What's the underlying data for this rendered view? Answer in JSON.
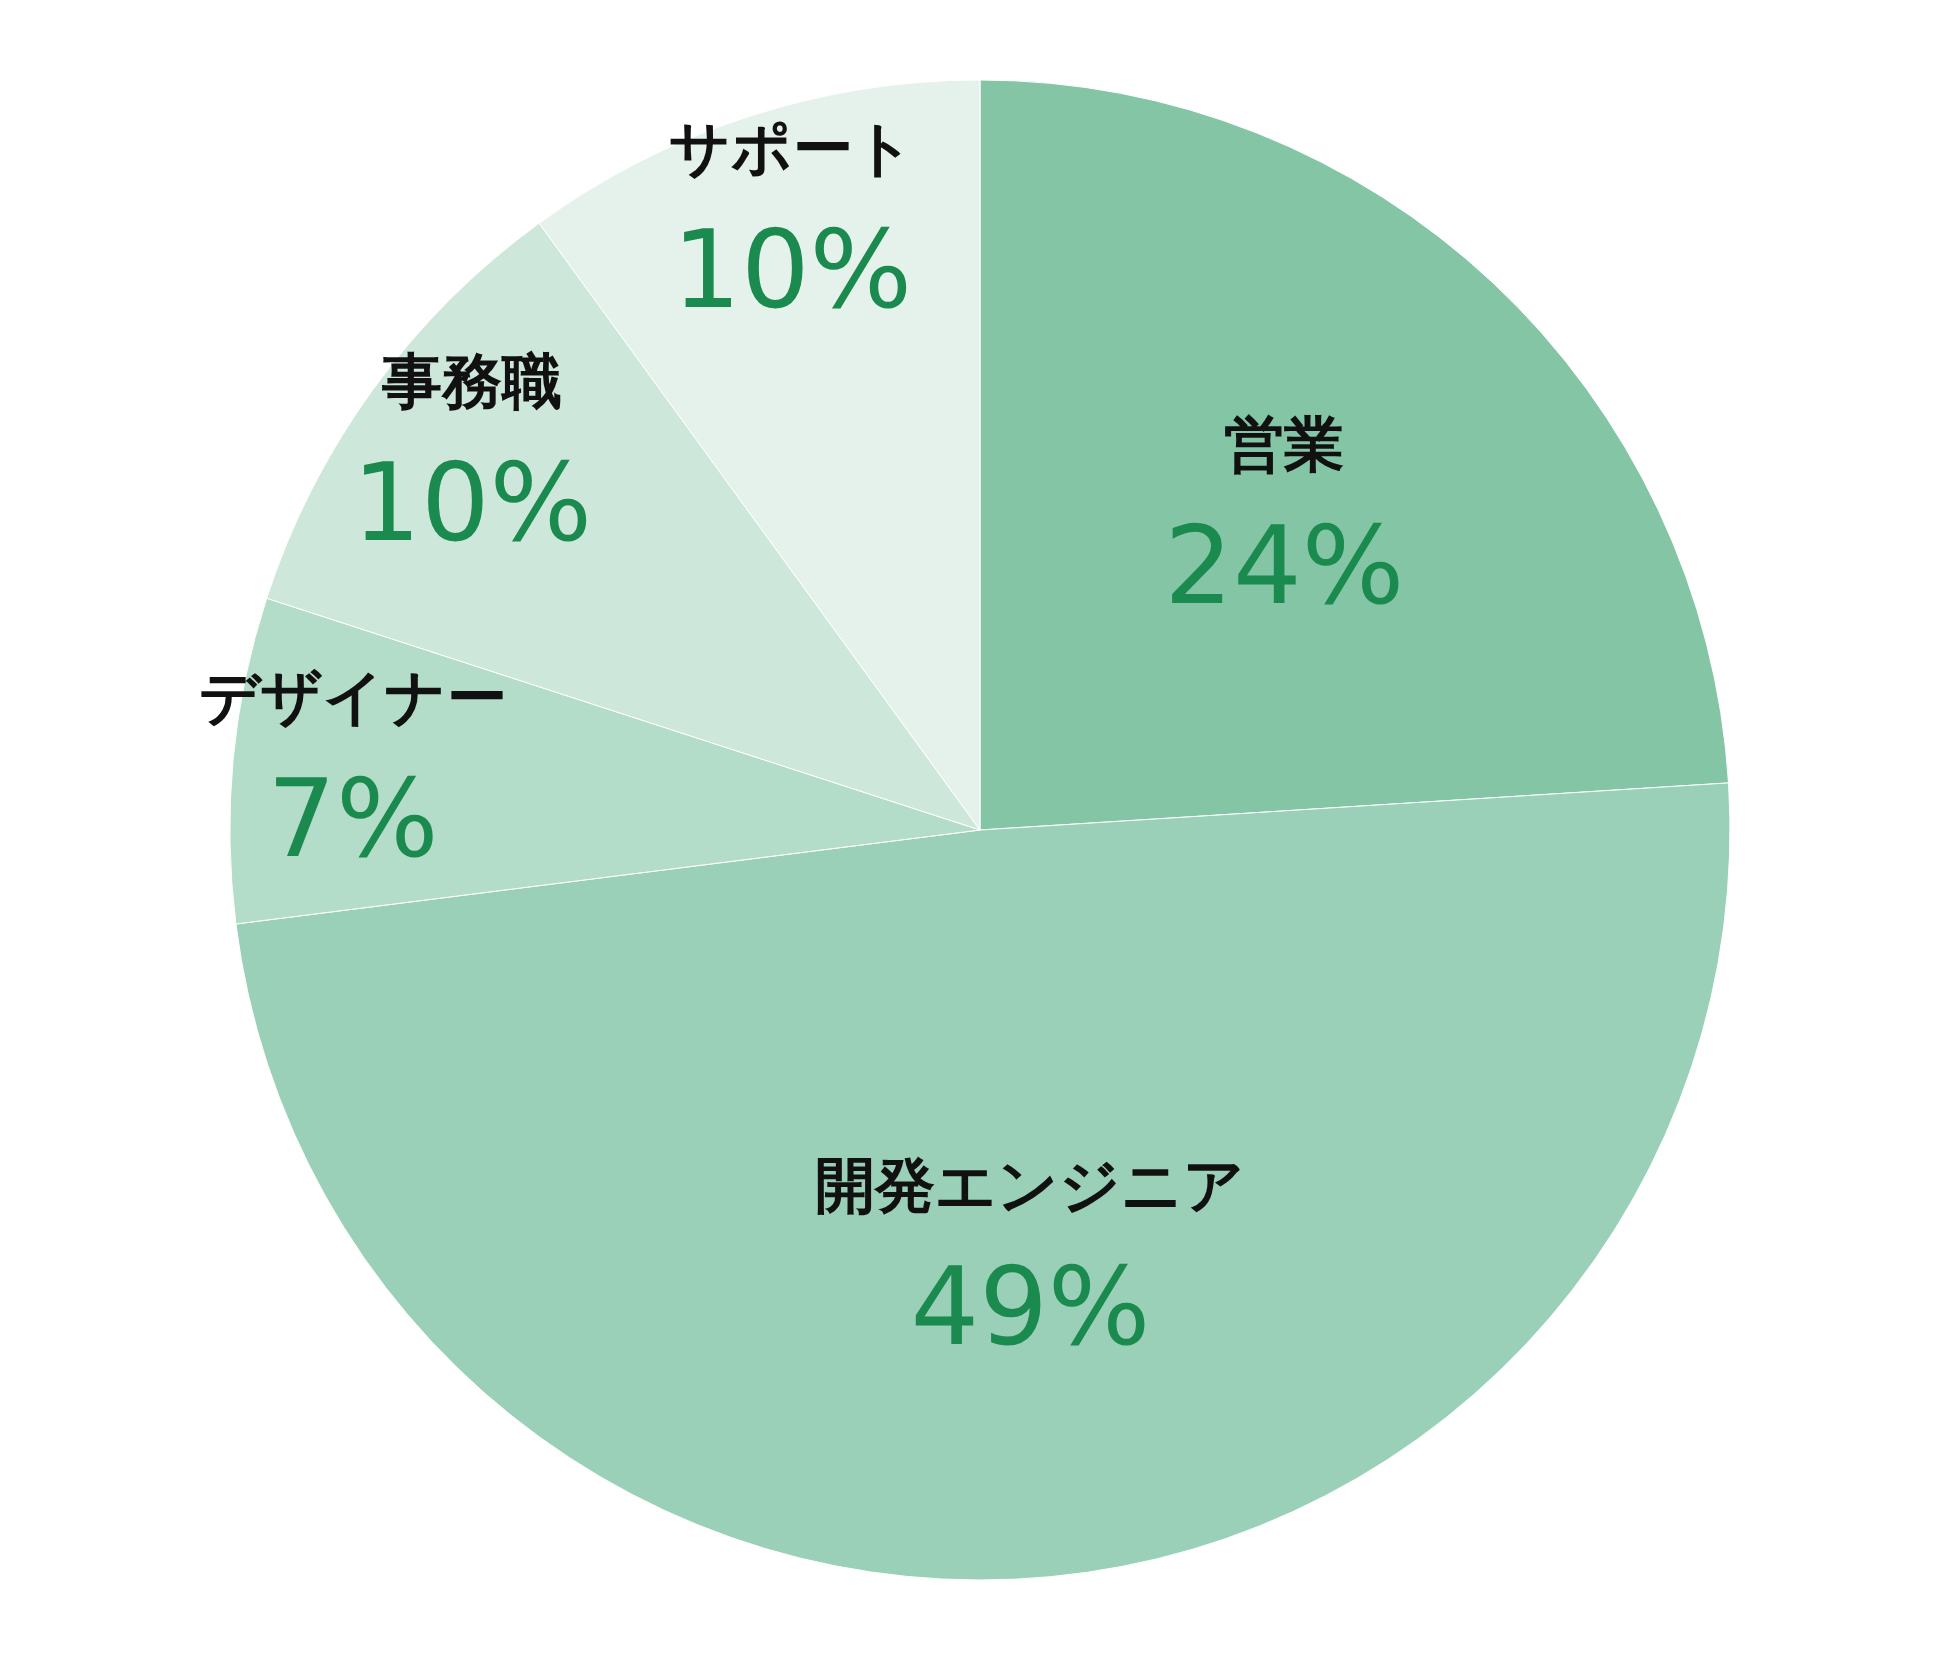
{
  "chart_data": {
    "type": "pie",
    "categories": [
      "営業",
      "開発エンジニア",
      "デザイナー",
      "事務職",
      "サポート"
    ],
    "values": [
      24,
      49,
      7,
      10,
      10
    ],
    "colors": [
      "#84c5a6",
      "#9bd0b8",
      "#b3dcc9",
      "#cde7db",
      "#e4f2eb"
    ],
    "value_labels": [
      "24%",
      "49%",
      "7%",
      "10%",
      "10%"
    ],
    "legend": false
  }
}
